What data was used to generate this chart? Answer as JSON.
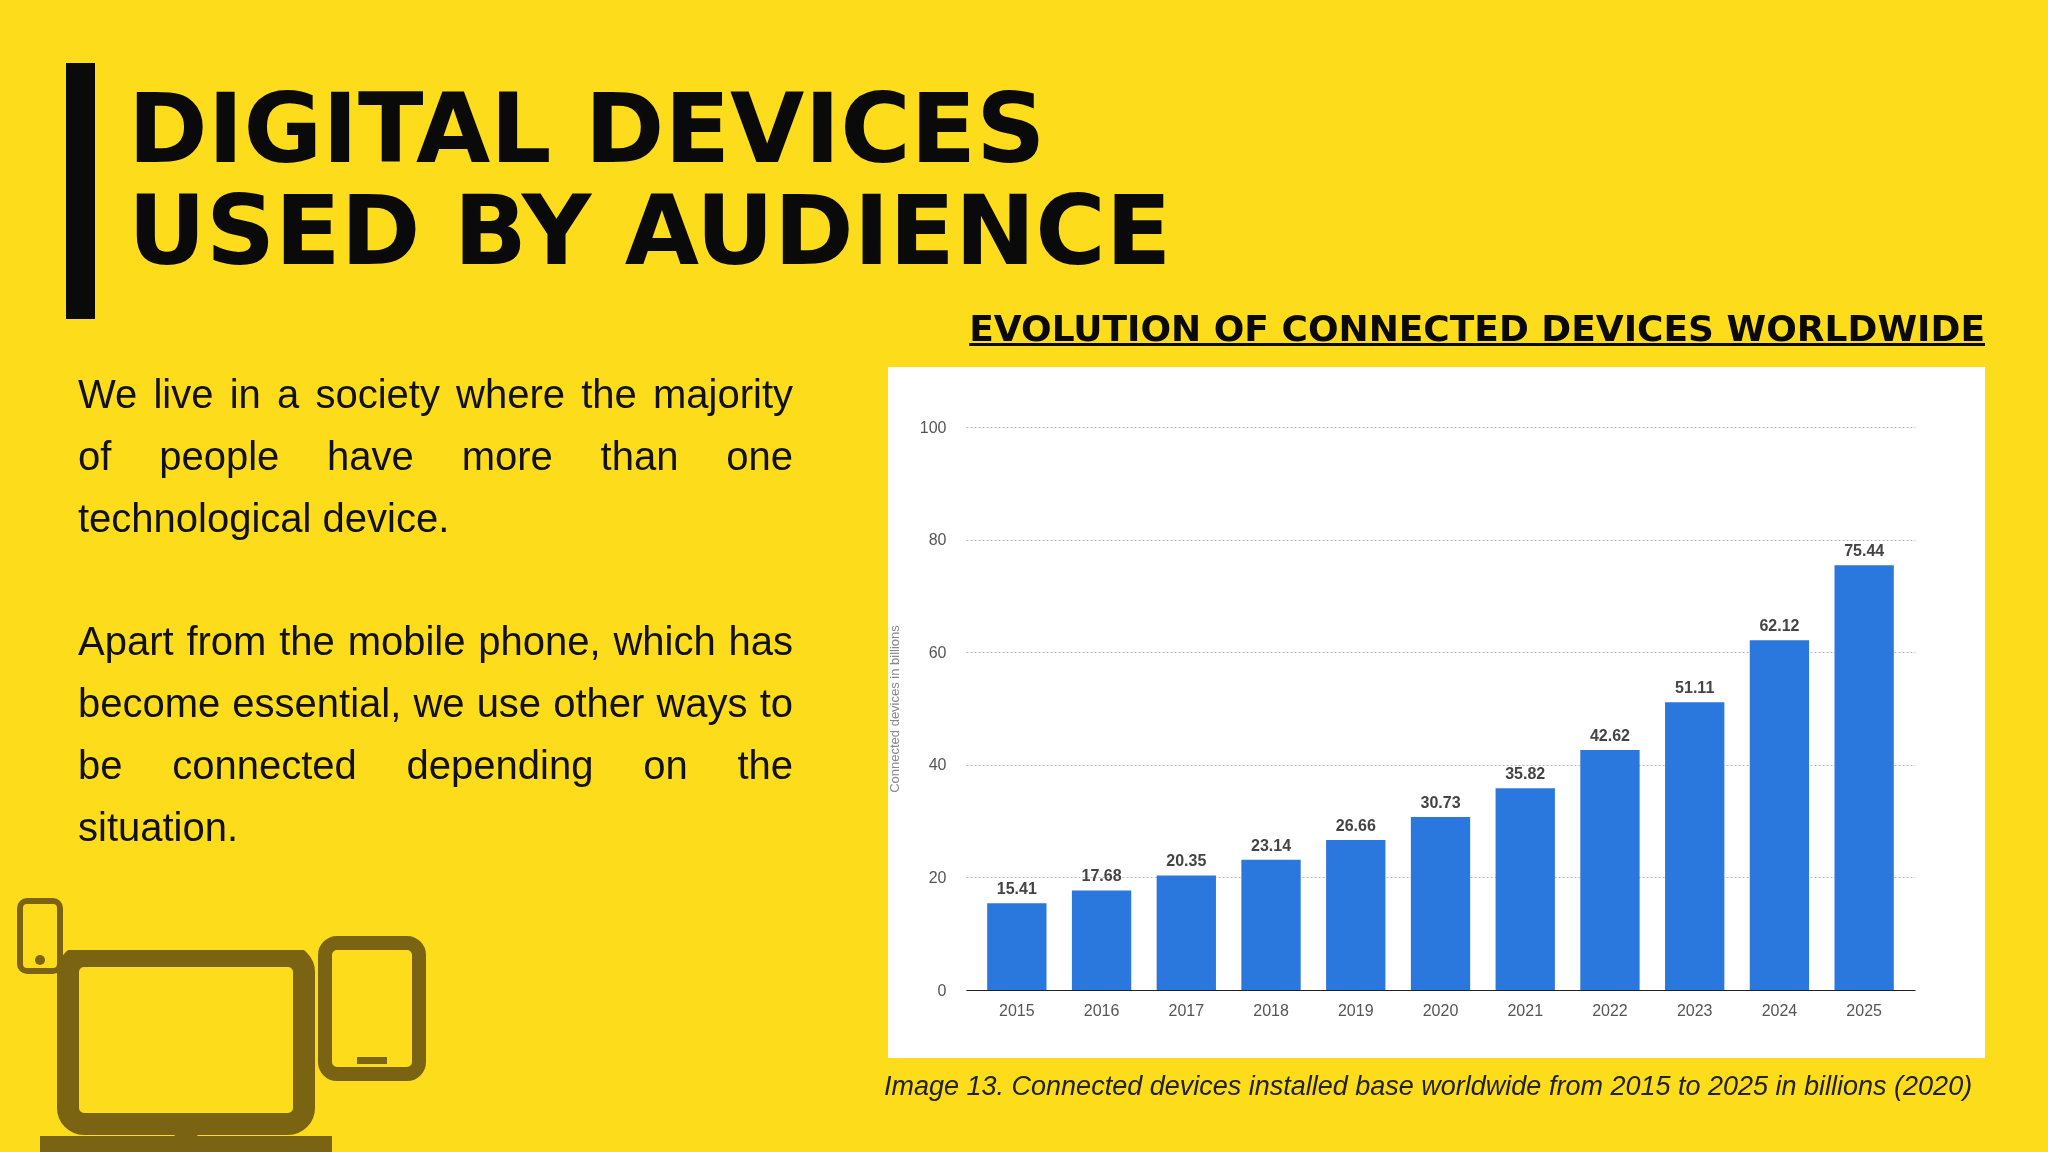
{
  "chart_data": {
    "type": "bar",
    "title": "DIGITAL DEVICES USED BY AUDIENCE",
    "subtitle": "EVOLUTION OF CONNECTED DEVICES WORLDWIDE",
    "annotations": [
      "We live in a society where the majority of people have more than one technological device.",
      "Apart from the mobile phone, which has become essential, we use other ways to be connected depending on the situation.",
      "Image 13. Connected devices installed base worldwide from 2015 to 2025 in billions (2020)"
    ],
    "ylabel": "Connected devices in billions",
    "categories": [
      "2015",
      "2016",
      "2017",
      "2018",
      "2019",
      "2020",
      "2021",
      "2022",
      "2023",
      "2024",
      "2025"
    ],
    "values": [
      15.41,
      17.68,
      20.35,
      23.14,
      26.66,
      30.73,
      35.82,
      42.62,
      51.11,
      62.12,
      75.44
    ],
    "color": "#2a77dd",
    "ylim": [
      0,
      100
    ],
    "yticks": [
      0,
      20,
      40,
      60,
      80,
      100
    ],
    "grid": "y",
    "data_labels": true
  }
}
